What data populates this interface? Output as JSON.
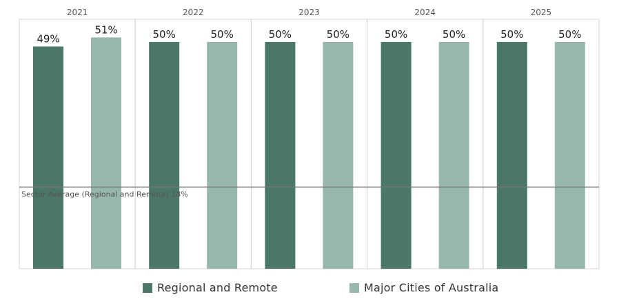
{
  "chart_data": {
    "type": "bar",
    "categories": [
      "2021",
      "2022",
      "2023",
      "2024",
      "2025"
    ],
    "series": [
      {
        "name": "Regional and Remote",
        "color": "#4a7769",
        "values": [
          49,
          50,
          50,
          50,
          50
        ],
        "labels": [
          "49%",
          "50%",
          "50%",
          "50%",
          "50%"
        ]
      },
      {
        "name": "Major Cities of Australia",
        "color": "#97b7ad",
        "values": [
          51,
          50,
          50,
          50,
          50
        ],
        "labels": [
          "51%",
          "50%",
          "50%",
          "50%",
          "50%"
        ]
      }
    ],
    "reference_line": {
      "label": "Sector Average (Regional and Remote) 18%",
      "value": 18
    },
    "unit": "%",
    "ylim": [
      0,
      55
    ],
    "grid": false,
    "legend_position": "bottom"
  }
}
